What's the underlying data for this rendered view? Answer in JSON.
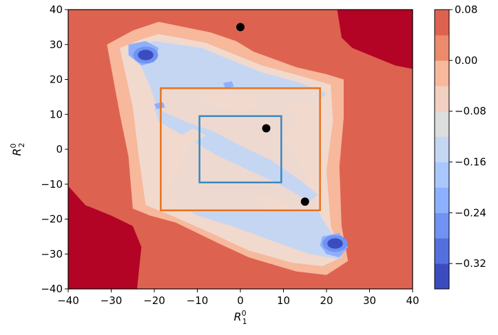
{
  "chart_data": {
    "type": "contour",
    "xlabel": "R_1^0",
    "ylabel": "R_2^0",
    "xlim": [
      -40,
      40
    ],
    "ylim": [
      -40,
      40
    ],
    "xticks": [
      "−40",
      "−30",
      "−20",
      "−10",
      "0",
      "10",
      "20",
      "30",
      "40"
    ],
    "yticks": [
      "−40",
      "−30",
      "−20",
      "−10",
      "0",
      "10",
      "20",
      "30",
      "40"
    ],
    "colorbar": {
      "range": [
        -0.36,
        0.08
      ],
      "levels": [
        -0.36,
        -0.32,
        -0.28,
        -0.24,
        -0.2,
        -0.16,
        -0.12,
        -0.08,
        -0.04,
        0.0,
        0.04,
        0.08
      ],
      "colors": [
        "#3b4cc0",
        "#5470de",
        "#6f92f3",
        "#8db0fe",
        "#aac7fd",
        "#c5d6f2",
        "#dcdddd",
        "#f1d0c1",
        "#f7b89c",
        "#ec8a6c",
        "#dd6350",
        "#b40426"
      ],
      "tick_labels": [
        "0.08",
        "0.00",
        "−0.08",
        "−0.16",
        "−0.24",
        "−0.32"
      ],
      "tick_values": [
        0.08,
        0.0,
        -0.08,
        -0.16,
        -0.24,
        -0.32
      ]
    },
    "fill_colors": {
      "dark_red": "#b40426",
      "red": "#dd6350",
      "salmon": "#f7b89c",
      "beige": "#f1d9cd",
      "light_blue": "#c5d6f2",
      "mid_blue": "#8db0fe",
      "deep_blue": "#3b4cc0"
    },
    "regions": {
      "dark_red_corners": [
        [
          [
            -40,
            -10.5
          ],
          [
            -36,
            -16
          ],
          [
            -30,
            -19
          ],
          [
            -25,
            -22
          ],
          [
            -23,
            -28
          ],
          [
            -24,
            -40
          ],
          [
            -40,
            -40
          ]
        ],
        [
          [
            22.5,
            40
          ],
          [
            23.5,
            32
          ],
          [
            26,
            29
          ],
          [
            32,
            26
          ],
          [
            36,
            24
          ],
          [
            40,
            23
          ],
          [
            40,
            40
          ]
        ]
      ],
      "salmon_band": [
        [
          -25,
          34
        ],
        [
          -19,
          36.5
        ],
        [
          -7,
          33.5
        ],
        [
          -1,
          31
        ],
        [
          3,
          28
        ],
        [
          13,
          23.5
        ],
        [
          20,
          21.5
        ],
        [
          24,
          20
        ],
        [
          24,
          9
        ],
        [
          23,
          -5
        ],
        [
          23.5,
          -22
        ],
        [
          25,
          -32
        ],
        [
          20,
          -36
        ],
        [
          13,
          -35
        ],
        [
          2,
          -31
        ],
        [
          -5,
          -27
        ],
        [
          -15,
          -21
        ],
        [
          -21,
          -19
        ],
        [
          -25,
          -17
        ],
        [
          -26,
          -2
        ],
        [
          -28,
          10
        ],
        [
          -31,
          30
        ]
      ],
      "beige_band": [
        [
          -23,
          31.5
        ],
        [
          -19,
          33
        ],
        [
          -8,
          30.5
        ],
        [
          -1,
          27
        ],
        [
          5,
          24
        ],
        [
          14,
          21
        ],
        [
          21,
          18.5
        ],
        [
          21.5,
          8
        ],
        [
          20,
          -6
        ],
        [
          21,
          -22
        ],
        [
          23.5,
          -31
        ],
        [
          19,
          -33.5
        ],
        [
          12,
          -32.5
        ],
        [
          2,
          -29
        ],
        [
          -6,
          -24.5
        ],
        [
          -16,
          -19
        ],
        [
          -22,
          -16
        ],
        [
          -23.5,
          -3
        ],
        [
          -25,
          12
        ],
        [
          -28,
          29
        ]
      ],
      "light_blue_body": [
        [
          -25,
          29
        ],
        [
          -20,
          31
        ],
        [
          -9,
          29
        ],
        [
          -2,
          25.5
        ],
        [
          5,
          22
        ],
        [
          14,
          19
        ],
        [
          20,
          16
        ],
        [
          16,
          11
        ],
        [
          12,
          7
        ],
        [
          10,
          3
        ],
        [
          13,
          -2
        ],
        [
          15,
          -8
        ],
        [
          16,
          -12
        ],
        [
          19,
          -20
        ],
        [
          24,
          -29
        ],
        [
          23,
          -31.5
        ],
        [
          16,
          -30
        ],
        [
          8,
          -26.5
        ],
        [
          -2,
          -22
        ],
        [
          -10,
          -19
        ],
        [
          -14,
          -16
        ],
        [
          -17.5,
          -13
        ],
        [
          -14,
          -5
        ],
        [
          -12,
          0
        ],
        [
          -15,
          6
        ],
        [
          -19,
          11
        ],
        [
          -21,
          18
        ]
      ],
      "beige_inner_square": [
        [
          -18.5,
          17.5
        ],
        [
          18.5,
          17.5
        ],
        [
          18.5,
          -17.5
        ],
        [
          -18.5,
          -17.5
        ]
      ],
      "light_blue_diagonal_band": [
        [
          -20,
          12
        ],
        [
          -13,
          8
        ],
        [
          -6,
          5
        ],
        [
          0,
          1
        ],
        [
          7,
          -3
        ],
        [
          14,
          -9
        ],
        [
          18,
          -13
        ],
        [
          16,
          -15
        ],
        [
          9,
          -10
        ],
        [
          2,
          -6
        ],
        [
          -5,
          -2
        ],
        [
          -12,
          3
        ],
        [
          -19,
          8
        ]
      ],
      "beige_holes": [
        [
          [
            -10,
            14
          ],
          [
            -4,
            16
          ],
          [
            3,
            15
          ],
          [
            5,
            12
          ],
          [
            0,
            11
          ],
          [
            -6,
            12
          ]
        ],
        [
          [
            -15,
            3
          ],
          [
            -11,
            6
          ],
          [
            -8,
            4
          ],
          [
            -12,
            1
          ]
        ],
        [
          [
            2,
            -13
          ],
          [
            8,
            -14
          ],
          [
            12,
            -17
          ],
          [
            6,
            -17
          ]
        ],
        [
          [
            11,
            12
          ],
          [
            15,
            14
          ],
          [
            17,
            10
          ],
          [
            13,
            9
          ]
        ]
      ],
      "mid_blue_specks": [
        [
          [
            -26,
            30
          ],
          [
            -22,
            31
          ],
          [
            -19,
            29
          ],
          [
            -20,
            25
          ],
          [
            -23,
            24
          ],
          [
            -26,
            27
          ]
        ],
        [
          [
            -4,
            19
          ],
          [
            -2,
            19.5
          ],
          [
            -1.5,
            18
          ],
          [
            -3.5,
            17.5
          ]
        ],
        [
          [
            -20,
            13
          ],
          [
            -18,
            13.5
          ],
          [
            -17.5,
            12
          ],
          [
            -19.5,
            11.5
          ]
        ],
        [
          [
            19,
            -25
          ],
          [
            23,
            -24
          ],
          [
            25,
            -28
          ],
          [
            23,
            -31
          ],
          [
            20,
            -30
          ],
          [
            18.5,
            -27.5
          ]
        ]
      ],
      "deep_blue_minima": [
        [
          -22,
          27,
          1.8,
          1.5
        ],
        [
          22,
          -27,
          1.8,
          1.5
        ]
      ]
    },
    "boxes": [
      {
        "color": "#e8711c",
        "x": [
          -18.5,
          18.5
        ],
        "y": [
          -17.5,
          17.5
        ]
      },
      {
        "color": "#3a87be",
        "x": [
          -9.5,
          9.5
        ],
        "y": [
          -9.5,
          9.5
        ]
      }
    ],
    "points": [
      {
        "x": 0,
        "y": 35
      },
      {
        "x": 6,
        "y": 6
      },
      {
        "x": 15,
        "y": -15
      }
    ],
    "point_color": "#000000",
    "grid": false,
    "legend": "none"
  }
}
